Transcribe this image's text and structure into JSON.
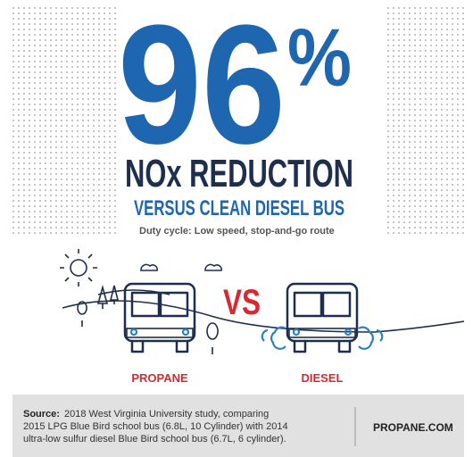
{
  "headline": {
    "number": "96",
    "unit": "%"
  },
  "subtitle": "NOx REDUCTION",
  "comparison": "VERSUS CLEAN DIESEL BUS",
  "duty_cycle": "Duty cycle: Low speed, stop-and-go route",
  "illustration": {
    "vs": "VS",
    "left_label": "PROPANE",
    "right_label": "DIESEL"
  },
  "footer": {
    "source_label": "Source:",
    "source_lines": [
      "2018 West Virginia University study, comparing",
      "2015 LPG Blue Bird school bus (6.8L, 10 Cylinder) with 2014",
      "ultra-low sulfur diesel Blue Bird school bus (6.7L, 6 cylinder)."
    ],
    "website": "PROPANE.COM"
  }
}
